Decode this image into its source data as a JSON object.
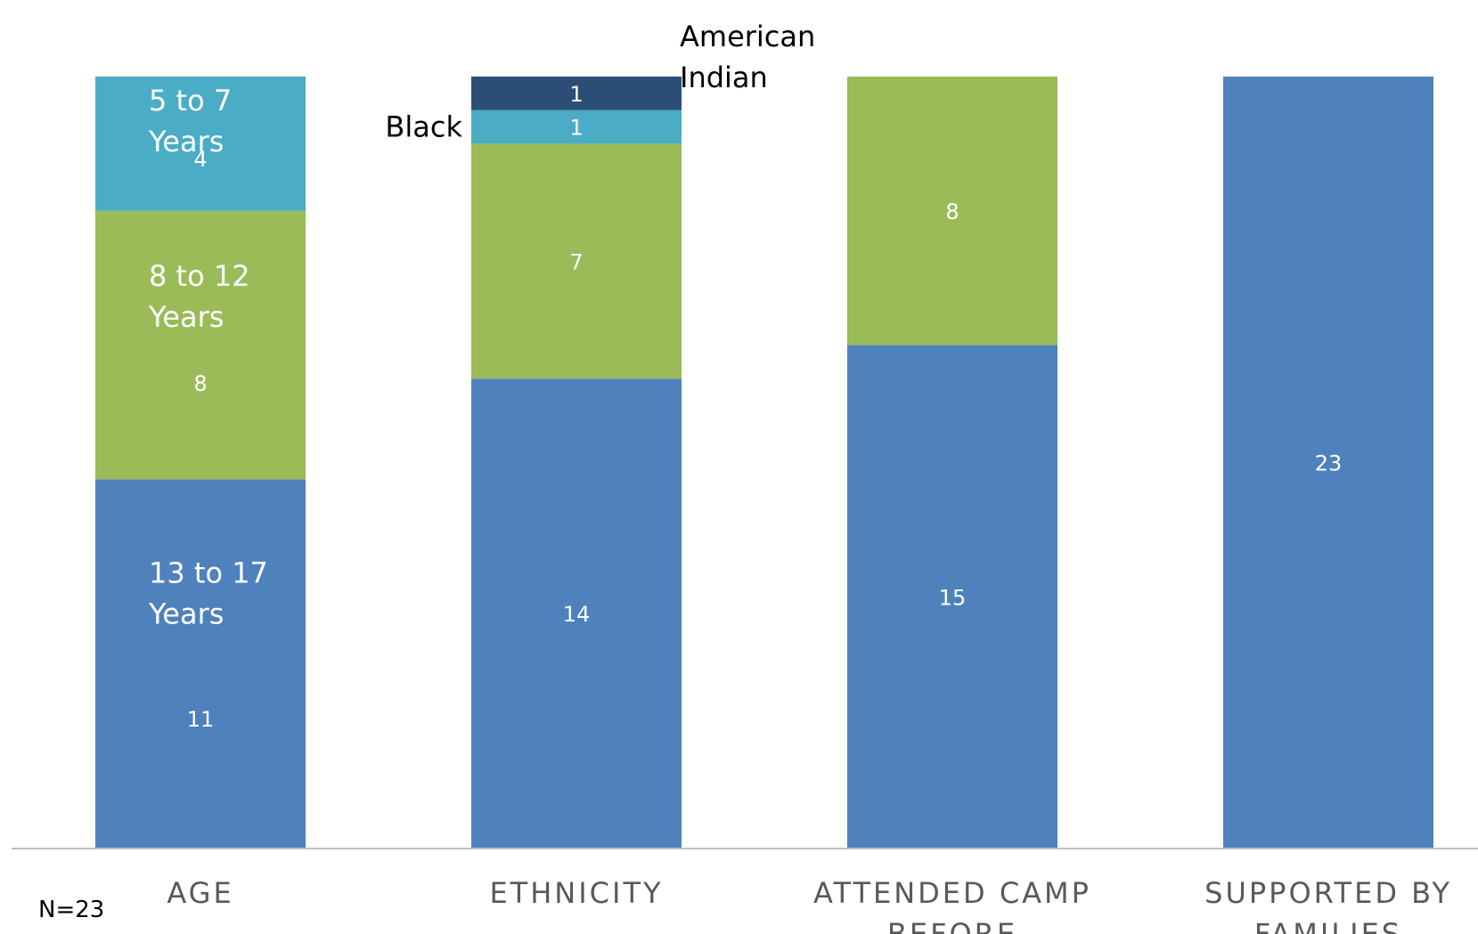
{
  "chart_data": {
    "type": "bar",
    "stacked": true,
    "note": "N=23",
    "grid": false,
    "legend": "none",
    "categories": [
      "AGE",
      "ETHNICITY",
      "ATTENDED CAMP BEFORE",
      "SUPPORTED BY FAMILIES"
    ],
    "category_display": [
      [
        "AGE"
      ],
      [
        "ETHNICITY"
      ],
      [
        "ATTENDED CAMP",
        "BEFORE"
      ],
      [
        "SUPPORTED BY",
        "FAMILIES"
      ]
    ],
    "colors": {
      "blue": "#4f81bd",
      "green": "#9bbb59",
      "teal": "#4bacc6",
      "navy": "#2c4d75"
    },
    "ylim": [
      0,
      23
    ],
    "bars": [
      {
        "category": "AGE",
        "segments": [
          {
            "value": 11,
            "label": [
              "13 to 17",
              "Years"
            ],
            "color": "#4f81bd"
          },
          {
            "value": 8,
            "label": [
              "8 to 12",
              "Years"
            ],
            "color": "#9bbb59"
          },
          {
            "value": 4,
            "label": [
              "5 to 7",
              "Years"
            ],
            "color": "#4bacc6"
          }
        ]
      },
      {
        "category": "ETHNICITY",
        "segments": [
          {
            "value": 14,
            "label": [],
            "color": "#4f81bd"
          },
          {
            "value": 7,
            "label": [],
            "color": "#9bbb59"
          },
          {
            "value": 1,
            "label": [
              "Black"
            ],
            "color": "#4bacc6"
          },
          {
            "value": 1,
            "label": [
              "American",
              "Indian"
            ],
            "color": "#2c4d75"
          }
        ]
      },
      {
        "category": "ATTENDED CAMP BEFORE",
        "segments": [
          {
            "value": 15,
            "label": [],
            "color": "#4f81bd"
          },
          {
            "value": 8,
            "label": [],
            "color": "#9bbb59"
          }
        ]
      },
      {
        "category": "SUPPORTED BY FAMILIES",
        "segments": [
          {
            "value": 23,
            "label": [],
            "color": "#4f81bd"
          }
        ]
      }
    ]
  }
}
